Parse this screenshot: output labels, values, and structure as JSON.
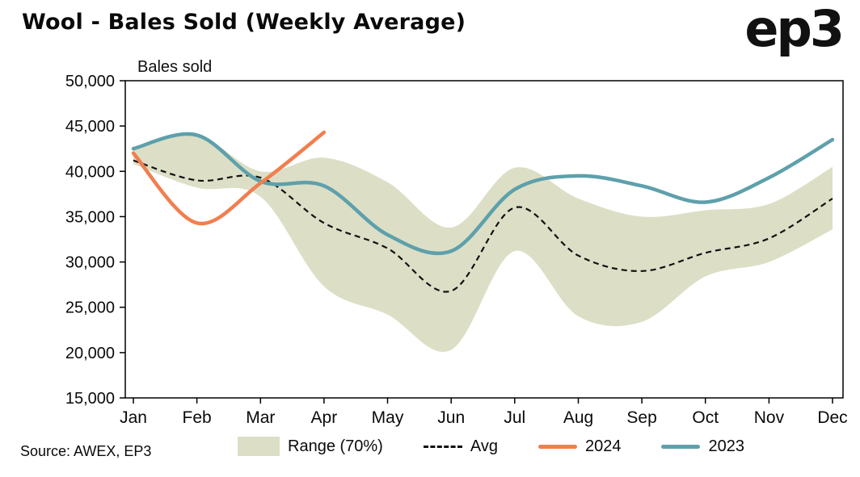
{
  "header": {
    "title": "Wool - Bales Sold (Weekly Average)",
    "logo": "ep3"
  },
  "footer": {
    "source": "Source: AWEX, EP3"
  },
  "legend": {
    "items": [
      {
        "label": "Range (70%)",
        "swatch": "band",
        "color": "#dcdfc6"
      },
      {
        "label": "Avg",
        "swatch": "dashed",
        "color": "#111111"
      },
      {
        "label": "2024",
        "swatch": "line",
        "color": "#f07f4f"
      },
      {
        "label": "2023",
        "swatch": "line",
        "color": "#5ea0ab"
      }
    ]
  },
  "colors": {
    "band": "#dcdfc6",
    "avg": "#111111",
    "y2024": "#f07f4f",
    "y2023": "#5ea0ab",
    "axis": "#000000",
    "background": "#ffffff"
  },
  "chart_data": {
    "type": "line",
    "title": "Wool - Bales Sold (Weekly Average)",
    "ylabel": "Bales sold",
    "xlabel": "",
    "ylim": [
      15000,
      50000
    ],
    "y_ticks": [
      15000,
      20000,
      25000,
      30000,
      35000,
      40000,
      45000,
      50000
    ],
    "categories": [
      "Jan",
      "Feb",
      "Mar",
      "Apr",
      "May",
      "Jun",
      "Jul",
      "Aug",
      "Sep",
      "Oct",
      "Nov",
      "Dec"
    ],
    "grid": false,
    "legend_position": "bottom",
    "series": [
      {
        "name": "Range upper",
        "style": "band-upper",
        "values": [
          42600,
          44000,
          40000,
          41500,
          38800,
          33800,
          40400,
          37000,
          35000,
          35700,
          36400,
          40500
        ]
      },
      {
        "name": "Range lower",
        "style": "band-lower",
        "values": [
          40800,
          38200,
          37200,
          27300,
          24200,
          20300,
          31200,
          24000,
          23400,
          28400,
          30000,
          33600
        ]
      },
      {
        "name": "Avg",
        "style": "dashed",
        "values": [
          41200,
          39000,
          39300,
          34300,
          31500,
          26800,
          36000,
          30700,
          29000,
          31000,
          32600,
          37000
        ]
      },
      {
        "name": "2024",
        "style": "solid",
        "values": [
          42000,
          34300,
          38700,
          44300
        ]
      },
      {
        "name": "2023",
        "style": "solid",
        "values": [
          42500,
          44000,
          38900,
          38400,
          33000,
          31200,
          38000,
          39500,
          38400,
          36600,
          39300,
          43500
        ]
      }
    ]
  }
}
